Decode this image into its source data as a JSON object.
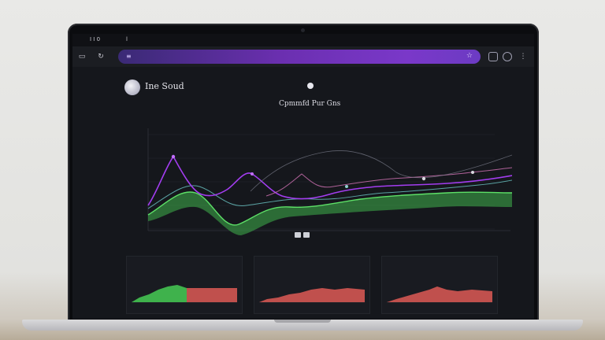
{
  "browser": {
    "tab_title": "I I 0",
    "tab_label_2": "l",
    "address_text": "",
    "colors": {
      "address_start": "#3a2a75",
      "address_end": "#7a38c9"
    }
  },
  "app": {
    "brand": "Ine Soud",
    "center_title": "Cpmmfd Pur Gns",
    "colors": {
      "purple": "#a33df0",
      "green": "#3ec94e",
      "red": "#cf5f5b",
      "teal": "#4fbfc2"
    }
  },
  "main_chart": {
    "y_labels": [
      "",
      "",
      "",
      ""
    ],
    "x_labels": [
      "",
      "",
      "",
      "",
      "",
      "",
      ""
    ],
    "pill_label": ""
  },
  "minis": [
    {
      "title": "",
      "foot": ""
    },
    {
      "title": "",
      "foot": ""
    },
    {
      "title": "",
      "foot": ""
    }
  ]
}
